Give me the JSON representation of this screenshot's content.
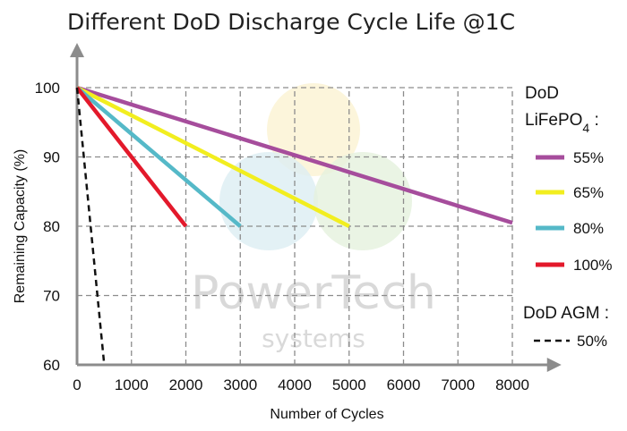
{
  "chart_data": {
    "type": "line",
    "title": "Different DoD Discharge Cycle Life @1C",
    "xlabel": "Number of Cycles",
    "ylabel": "Remaining Capacity (%)",
    "xlim": [
      0,
      9000
    ],
    "ylim": [
      60,
      100
    ],
    "x_ticks": [
      0,
      1000,
      2000,
      3000,
      4000,
      5000,
      6000,
      7000,
      8000
    ],
    "y_ticks": [
      60,
      70,
      80,
      90,
      100
    ],
    "grid": true,
    "legend_position": "right",
    "legend_groups": [
      {
        "title": "DoD",
        "title_line2_base": "LiFePO",
        "title_line2_sub": "4",
        "title_line2_suffix": " :",
        "series": [
          0,
          1,
          2,
          3
        ]
      },
      {
        "title": "DoD AGM :",
        "series": [
          4
        ]
      }
    ],
    "series": [
      {
        "name": "55%",
        "color": "#a64d9c",
        "style": "solid",
        "points": [
          [
            0,
            100
          ],
          [
            8000,
            80.5
          ]
        ]
      },
      {
        "name": "65%",
        "color": "#f2ee1f",
        "style": "solid",
        "points": [
          [
            0,
            100
          ],
          [
            5000,
            80
          ]
        ]
      },
      {
        "name": "80%",
        "color": "#55b9c8",
        "style": "solid",
        "points": [
          [
            0,
            100
          ],
          [
            3000,
            80
          ]
        ]
      },
      {
        "name": "100%",
        "color": "#e3192b",
        "style": "solid",
        "points": [
          [
            0,
            100
          ],
          [
            2000,
            80
          ]
        ]
      },
      {
        "name": "50%",
        "color": "#111111",
        "style": "dashed",
        "points": [
          [
            0,
            100
          ],
          [
            500,
            60
          ]
        ]
      }
    ],
    "watermark": {
      "line1": "PowerTech",
      "line2": "systems"
    }
  }
}
